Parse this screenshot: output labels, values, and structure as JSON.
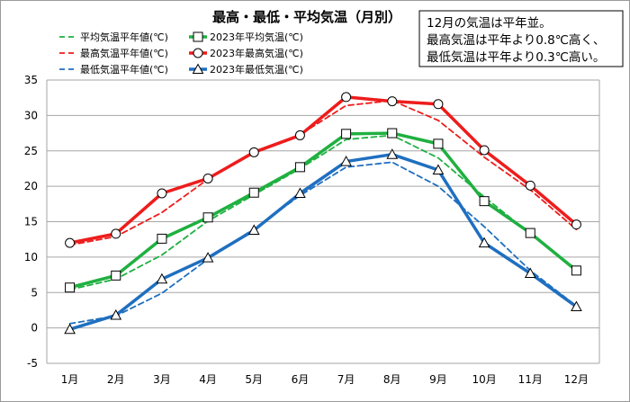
{
  "chart_data": {
    "type": "line",
    "title": "最高・最低・平均気温（月別）",
    "categories": [
      "1月",
      "2月",
      "3月",
      "4月",
      "5月",
      "6月",
      "7月",
      "8月",
      "9月",
      "10月",
      "11月",
      "12月"
    ],
    "ylim": [
      -5,
      35
    ],
    "yticks": [
      35,
      30,
      25,
      20,
      15,
      10,
      5,
      0,
      -5
    ],
    "grid": "horizontal",
    "legend_position": "top-left",
    "series": [
      {
        "name": "平均気温平年値(℃)",
        "style": "dashed",
        "color": "#1fb040",
        "values": [
          5.4,
          6.9,
          10.3,
          15.1,
          18.8,
          22.5,
          26.6,
          27.2,
          24.0,
          18.5,
          13.3,
          8.3
        ]
      },
      {
        "name": "2023年平均気温(℃)",
        "style": "solid",
        "marker": "square",
        "color": "#1fb040",
        "values": [
          5.7,
          7.4,
          12.6,
          15.6,
          19.1,
          22.7,
          27.4,
          27.5,
          26.0,
          17.9,
          13.4,
          8.1
        ]
      },
      {
        "name": "最高気温平年値(℃)",
        "style": "dashed",
        "color": "#ee1c1c",
        "values": [
          11.7,
          12.9,
          16.3,
          21.0,
          24.8,
          27.3,
          31.4,
          32.1,
          29.3,
          24.1,
          19.5,
          13.9
        ]
      },
      {
        "name": "2023年最高気温(℃)",
        "style": "solid",
        "marker": "circle",
        "color": "#ee1c1c",
        "values": [
          12.0,
          13.3,
          19.0,
          21.1,
          24.8,
          27.2,
          32.6,
          32.0,
          31.6,
          25.1,
          20.1,
          14.6
        ]
      },
      {
        "name": "最低気温平年値(℃)",
        "style": "dashed",
        "color": "#1f6fc0",
        "values": [
          0.6,
          1.7,
          4.9,
          9.7,
          14.0,
          18.7,
          22.7,
          23.4,
          20.0,
          14.3,
          8.1,
          3.1
        ]
      },
      {
        "name": "2023年最低気温(℃)",
        "style": "solid",
        "marker": "triangle",
        "color": "#1f6fc0",
        "values": [
          -0.2,
          1.8,
          6.9,
          9.9,
          13.8,
          19.0,
          23.5,
          24.5,
          22.3,
          12.0,
          7.7,
          3.0
        ]
      }
    ],
    "annotation": [
      "12月の気温は平年並。",
      "最高気温は平年より0.8℃高く、",
      "最低気温は平年より0.3℃高い。"
    ]
  }
}
